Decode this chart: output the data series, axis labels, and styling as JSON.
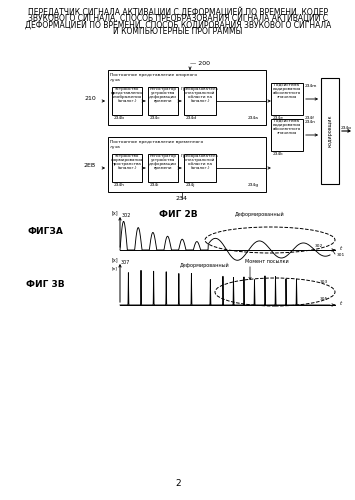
{
  "title_lines": [
    "ПЕРЕДАТЧИК СИГНАЛА АКТИВАЦИИ С ДЕФОРМАЦИЕЙ ПО ВРЕМЕНИ, КОДЕР",
    "ЗВУКОВОГО СИГНАЛА, СПОСОБ ПРЕОБРАЗОВАНИЯ СИГНАЛА АКТИВАЦИИ С",
    "ДЕФОРМАЦИЕЙ ПО ВРЕМЕНИ, СПОСОБ КОДИРОВАНИЯ ЗВУКОВОГО СИГНАЛА",
    "И КОМПЬЮТЕРНЫЕ ПРОГРАММЫ"
  ],
  "fig_label_2b": "ФИГ 2В",
  "fig_label_3a": "ФИГЗА",
  "fig_label_3b": "ФИГ 3В",
  "page_number": "2",
  "bg_color": "#ffffff",
  "text_color": "#000000",
  "line_color": "#000000",
  "title_fontsize": 5.5,
  "label_fontsize": 6.5,
  "anno_fontsize": 4.5,
  "small_fontsize": 3.8
}
